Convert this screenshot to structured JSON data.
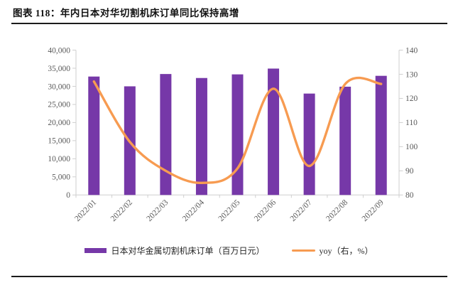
{
  "figure": {
    "title": "图表 118：年内日本对华切割机床订单同比保持高增"
  },
  "chart_data": {
    "type": "combo-bar-line",
    "categories": [
      "2022/01",
      "2022/02",
      "2022/03",
      "2022/04",
      "2022/05",
      "2022/06",
      "2022/07",
      "2022/08",
      "2022/09"
    ],
    "series": [
      {
        "name": "日本对华金属切割机床订单（百万日元）",
        "type": "bar",
        "axis": "left",
        "color": "#7638A8",
        "values": [
          32700,
          30000,
          33400,
          32300,
          33300,
          34900,
          28000,
          29900,
          32900
        ]
      },
      {
        "name": "yoy（右，%）",
        "type": "line",
        "axis": "right",
        "color": "#F79B51",
        "values": [
          127,
          102,
          90,
          85,
          91,
          124,
          92,
          126,
          126
        ]
      }
    ],
    "left_axis": {
      "min": 0,
      "max": 40000,
      "step": 5000,
      "tick_labels": [
        "0",
        "5,000",
        "10,000",
        "15,000",
        "20,000",
        "25,000",
        "30,000",
        "35,000",
        "40,000"
      ]
    },
    "right_axis": {
      "min": 80,
      "max": 140,
      "step": 10,
      "tick_labels": [
        "80",
        "90",
        "100",
        "110",
        "120",
        "130",
        "140"
      ]
    },
    "grid": false,
    "legend_position": "bottom",
    "axis_text_color": "#595959",
    "axis_line_color": "#CFCFCF"
  }
}
